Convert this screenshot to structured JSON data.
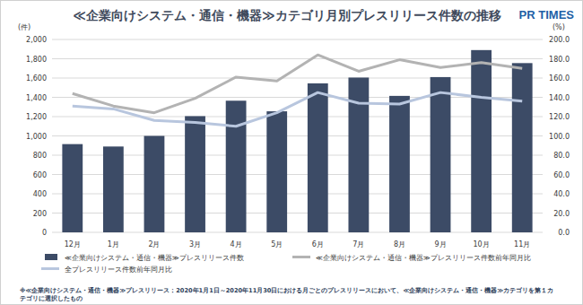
{
  "chart_data": {
    "type": "bar",
    "title": "≪企業向けシステム・通信・機器≫カテゴリ月別プレスリリース件数の推移",
    "logo": "PR TIMES",
    "y_label": "(件)",
    "y2_label": "(%)",
    "footnote": "※≪企業向けシステム・通信・機器≫プレスリリース：2020年1月1日～2020年11月30日における月ごとのプレスリリースにおいて、≪企業向けシステム・通信・機器≫カテゴリを第１カテゴリに選択したもの",
    "categories": [
      "12月",
      "1月",
      "2月",
      "3月",
      "4月",
      "5月",
      "6月",
      "7月",
      "8月",
      "9月",
      "10月",
      "11月"
    ],
    "series": [
      {
        "name": "≪企業向けシステム・通信・機器≫プレスリリース件数",
        "type": "bar",
        "color": "#3c4b66",
        "values": [
          915,
          890,
          1000,
          1205,
          1365,
          1255,
          1545,
          1605,
          1415,
          1610,
          1890,
          1755
        ]
      },
      {
        "name": "≪企業向けシステム・通信・機器≫プレスリリース件数前年同月比",
        "type": "line",
        "axis": "y2",
        "color": "#b3b3b3",
        "values": [
          144,
          131,
          124,
          139,
          161,
          157,
          184,
          167,
          179,
          171,
          176,
          170
        ]
      },
      {
        "name": "全プレスリリース件数前年同月比",
        "type": "line",
        "axis": "y2",
        "color": "#b8c6de",
        "values": [
          131,
          128,
          116,
          114,
          110,
          124,
          145,
          134,
          133,
          145,
          140,
          136
        ]
      }
    ],
    "ylim": [
      0,
      2000
    ],
    "yticks": [
      0,
      200,
      400,
      600,
      800,
      {
        "value": 1000,
        "label": "1,000"
      },
      {
        "value": 1200,
        "label": "1,200"
      },
      {
        "value": 1400,
        "label": "1,400"
      },
      {
        "value": 1600,
        "label": "1,600"
      },
      {
        "value": 1800,
        "label": "1,800"
      },
      {
        "value": 2000,
        "label": "2,000"
      }
    ],
    "y2lim": [
      0,
      200
    ],
    "y2ticks": [
      {
        "value": 0,
        "label": "0.0"
      },
      {
        "value": 20,
        "label": "20.0"
      },
      {
        "value": 40,
        "label": "40.0"
      },
      {
        "value": 60,
        "label": "60.0"
      },
      {
        "value": 80,
        "label": "80.0"
      },
      {
        "value": 100,
        "label": "100.0"
      },
      {
        "value": 120,
        "label": "120.0"
      },
      {
        "value": 140,
        "label": "140.0"
      },
      {
        "value": 160,
        "label": "160.0"
      },
      {
        "value": 180,
        "label": "180.0"
      },
      {
        "value": 200,
        "label": "200.0"
      }
    ],
    "grid": true,
    "legend": "bottom"
  }
}
